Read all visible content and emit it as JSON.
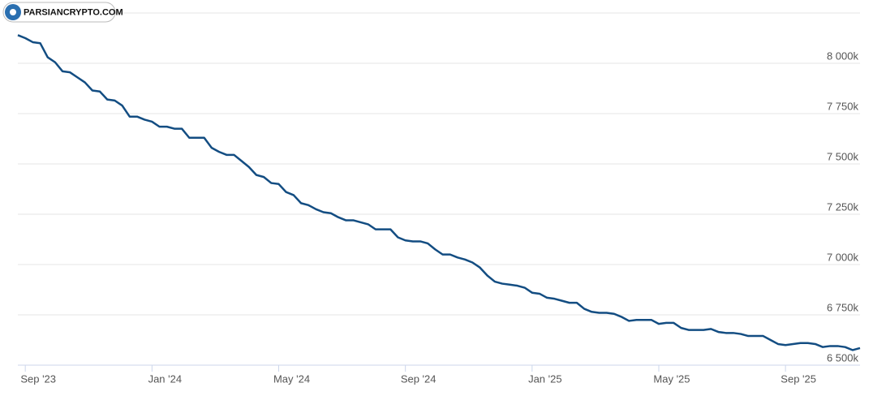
{
  "watermark": "PARSIANCRYPTO.COM",
  "chart_data": {
    "type": "line",
    "categories": [
      null,
      "Sep '23",
      null,
      null,
      null,
      null,
      null,
      null,
      null,
      null,
      null,
      null,
      null,
      null,
      null,
      null,
      null,
      null,
      "Jan '24",
      null,
      null,
      null,
      null,
      null,
      null,
      null,
      null,
      null,
      null,
      null,
      null,
      null,
      null,
      null,
      null,
      "May '24",
      null,
      null,
      null,
      null,
      null,
      null,
      null,
      null,
      null,
      null,
      null,
      null,
      null,
      null,
      null,
      null,
      "Sep '24",
      null,
      null,
      null,
      null,
      null,
      null,
      null,
      null,
      null,
      null,
      null,
      null,
      null,
      null,
      null,
      null,
      "Jan '25",
      null,
      null,
      null,
      null,
      null,
      null,
      null,
      null,
      null,
      null,
      null,
      null,
      null,
      null,
      null,
      null,
      "May '25",
      null,
      null,
      null,
      null,
      null,
      null,
      null,
      null,
      null,
      null,
      null,
      null,
      null,
      null,
      null,
      null,
      "Sep '25",
      null,
      null,
      null,
      null,
      null,
      null,
      null,
      null,
      null,
      null
    ],
    "series": [
      {
        "color": "#134d82",
        "values": [
          8140,
          8125,
          8105,
          8100,
          8030,
          8005,
          7960,
          7955,
          7930,
          7905,
          7865,
          7860,
          7820,
          7815,
          7790,
          7735,
          7735,
          7720,
          7710,
          7685,
          7685,
          7675,
          7675,
          7630,
          7630,
          7630,
          7580,
          7560,
          7545,
          7545,
          7515,
          7485,
          7445,
          7435,
          7405,
          7400,
          7360,
          7345,
          7305,
          7295,
          7275,
          7260,
          7255,
          7235,
          7220,
          7220,
          7210,
          7200,
          7175,
          7175,
          7175,
          7135,
          7120,
          7115,
          7115,
          7105,
          7075,
          7050,
          7050,
          7035,
          7025,
          7010,
          6985,
          6945,
          6915,
          6905,
          6900,
          6895,
          6885,
          6860,
          6855,
          6835,
          6830,
          6820,
          6810,
          6810,
          6780,
          6765,
          6760,
          6760,
          6755,
          6740,
          6720,
          6725,
          6725,
          6725,
          6705,
          6710,
          6710,
          6685,
          6675,
          6675,
          6675,
          6680,
          6665,
          6660,
          6660,
          6655,
          6645,
          6645,
          6645,
          6625,
          6605,
          6600,
          6605,
          6610,
          6610,
          6605,
          6590,
          6595,
          6595,
          6590,
          6575,
          6585
        ]
      }
    ],
    "ylim": [
      6500,
      8250
    ],
    "yticks": [
      {
        "value": 6500,
        "label": "6 500k"
      },
      {
        "value": 6750,
        "label": "6 750k"
      },
      {
        "value": 7000,
        "label": "7 000k"
      },
      {
        "value": 7250,
        "label": "7 250k"
      },
      {
        "value": 7500,
        "label": "7 500k"
      },
      {
        "value": 7750,
        "label": "7 750k"
      },
      {
        "value": 8000,
        "label": "8 000k"
      }
    ],
    "grid": true
  }
}
